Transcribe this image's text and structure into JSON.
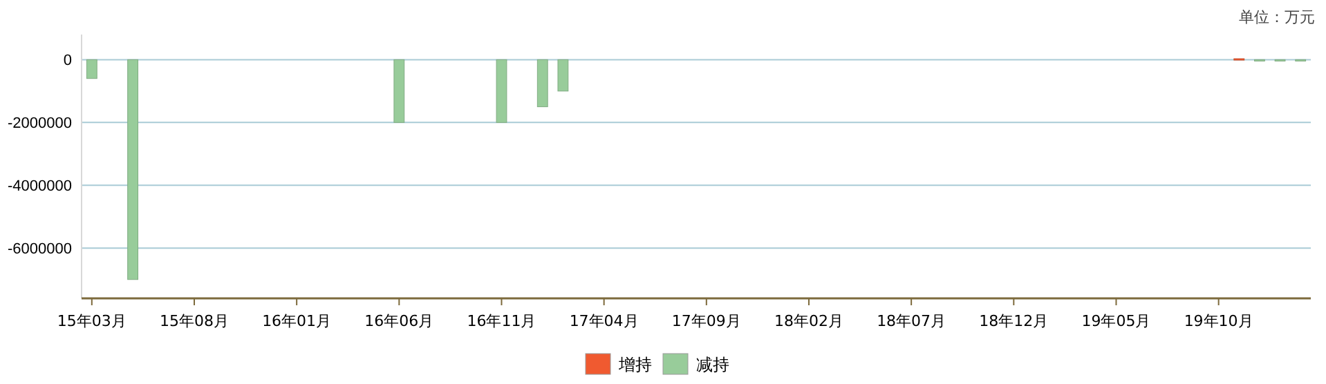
{
  "chart_data": {
    "type": "bar",
    "stacked": true,
    "categories": [
      "15年03月",
      null,
      null,
      null,
      null,
      "15年08月",
      null,
      null,
      null,
      null,
      "16年01月",
      null,
      null,
      null,
      null,
      "16年06月",
      null,
      null,
      null,
      null,
      "16年11月",
      null,
      null,
      null,
      null,
      "17年04月",
      null,
      null,
      null,
      null,
      "17年09月",
      null,
      null,
      null,
      null,
      "18年02月",
      null,
      null,
      null,
      null,
      "18年07月",
      null,
      null,
      null,
      null,
      "18年12月",
      null,
      null,
      null,
      null,
      "19年05月",
      null,
      null,
      null,
      null,
      "19年10月",
      null,
      null,
      null,
      null
    ],
    "series": [
      {
        "name": "增持",
        "color": "#f05a30",
        "values": [
          null,
          null,
          null,
          null,
          null,
          null,
          null,
          null,
          null,
          null,
          null,
          null,
          null,
          null,
          null,
          null,
          null,
          null,
          null,
          null,
          null,
          null,
          null,
          null,
          null,
          null,
          null,
          null,
          null,
          null,
          null,
          null,
          null,
          null,
          null,
          null,
          null,
          null,
          null,
          null,
          null,
          null,
          null,
          null,
          null,
          null,
          null,
          null,
          null,
          null,
          null,
          null,
          null,
          null,
          null,
          null,
          30000,
          null,
          null,
          null
        ]
      },
      {
        "name": "减持",
        "color": "#98cc9a",
        "values": [
          -600000,
          null,
          -7000000,
          null,
          null,
          null,
          null,
          null,
          null,
          null,
          null,
          null,
          null,
          null,
          null,
          -2000000,
          null,
          null,
          null,
          null,
          -2000000,
          null,
          -1500000,
          -1000000,
          null,
          null,
          null,
          null,
          null,
          null,
          null,
          null,
          null,
          null,
          null,
          null,
          null,
          null,
          null,
          null,
          null,
          null,
          null,
          null,
          null,
          null,
          null,
          null,
          null,
          null,
          null,
          null,
          null,
          null,
          null,
          null,
          null,
          -30000,
          -30000,
          -30000
        ]
      }
    ],
    "ylim": [
      -7600000,
      800000
    ],
    "yticks": [
      0,
      -2000000,
      -4000000,
      -6000000
    ],
    "grid": "y",
    "legend": "bottom",
    "annotations": [
      "单位：万元"
    ]
  }
}
